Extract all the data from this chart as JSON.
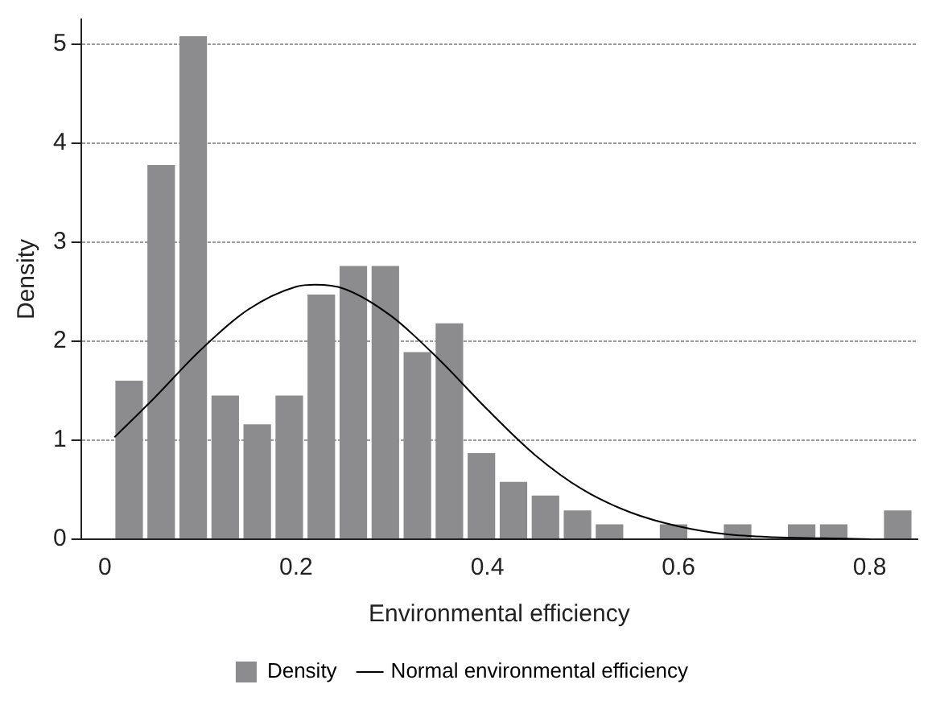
{
  "chart_data": {
    "type": "histogram",
    "xlabel": "Environmental efficiency",
    "ylabel": "Density",
    "bins": [
      0.0086,
      0.0421,
      0.0756,
      0.1091,
      0.1426,
      0.1761,
      0.2096,
      0.2431,
      0.2766,
      0.3101,
      0.3436,
      0.3771,
      0.4106,
      0.4441,
      0.4776,
      0.5111,
      0.5446,
      0.5781,
      0.6116,
      0.6451,
      0.6786,
      0.7121,
      0.7456,
      0.7791,
      0.8126,
      0.8461
    ],
    "series": [
      {
        "name": "Density",
        "color": "#8c8c8e",
        "values": [
          1.6,
          3.78,
          5.08,
          1.45,
          1.16,
          1.45,
          2.47,
          2.76,
          2.76,
          1.89,
          2.18,
          0.87,
          0.58,
          0.44,
          0.29,
          0.15,
          0,
          0.15,
          0,
          0.15,
          0,
          0.15,
          0.15,
          0,
          0.29
        ]
      },
      {
        "name": "Normal environmental efficiency",
        "type": "line",
        "color": "#000000",
        "x": [
          0.01,
          0.05,
          0.1,
          0.15,
          0.2,
          0.22,
          0.25,
          0.3,
          0.35,
          0.4,
          0.45,
          0.5,
          0.55,
          0.6,
          0.65,
          0.7,
          0.75,
          0.8
        ],
        "values": [
          1.03,
          1.41,
          1.91,
          2.32,
          2.55,
          2.57,
          2.53,
          2.25,
          1.81,
          1.31,
          0.85,
          0.5,
          0.27,
          0.13,
          0.05,
          0.02,
          0.01,
          0
        ]
      }
    ],
    "xlim": [
      -0.025,
      0.85
    ],
    "xticks": [
      0,
      0.2,
      0.4,
      0.6,
      0.8
    ],
    "ylim": [
      0,
      5.25
    ],
    "yticks": [
      0,
      1,
      2,
      3,
      4,
      5
    ],
    "grid": "y",
    "legend": "bottom",
    "marker": "none"
  }
}
